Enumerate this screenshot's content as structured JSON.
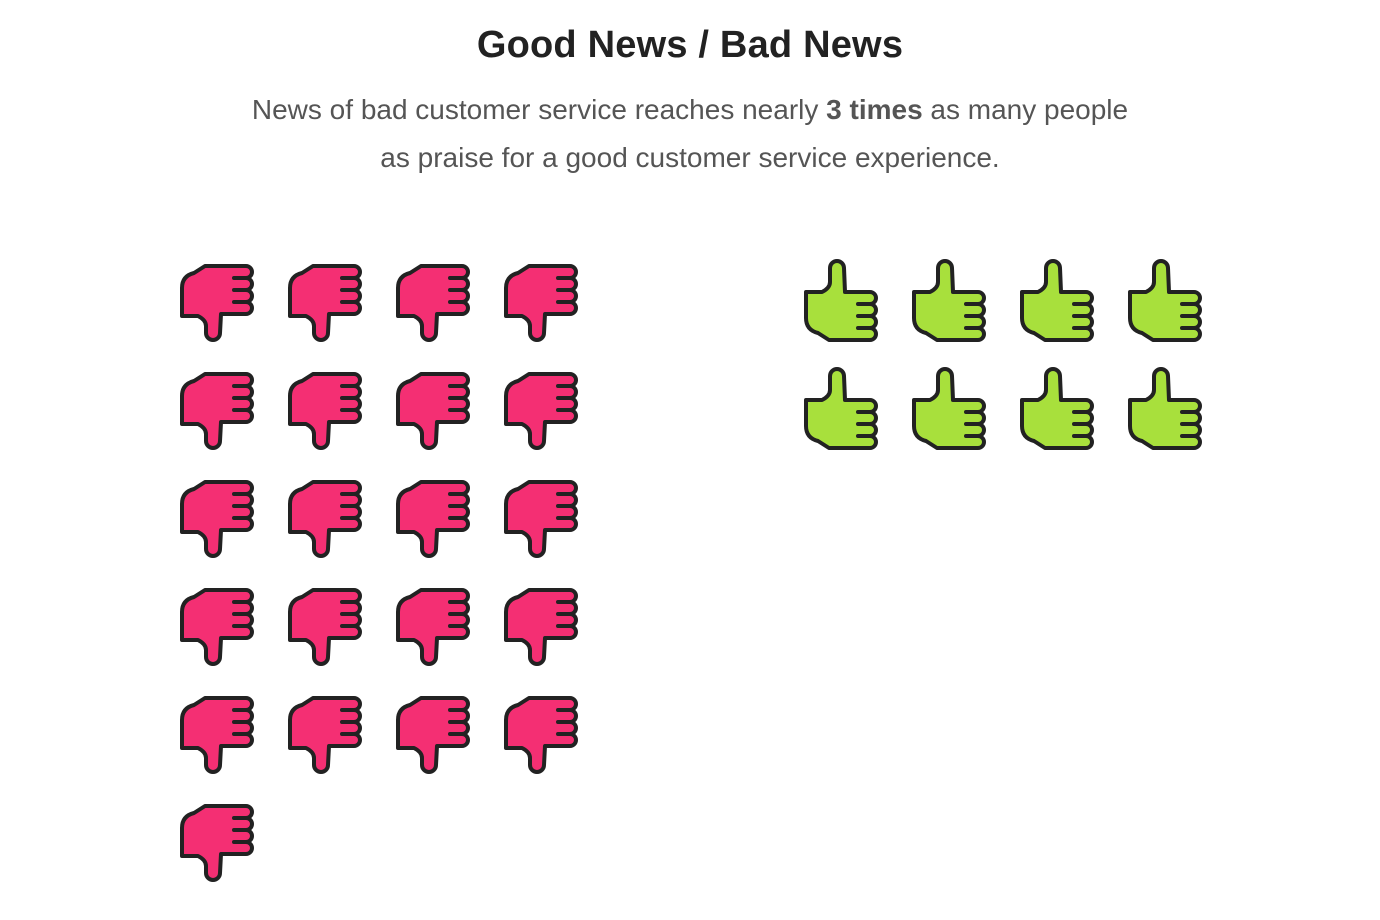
{
  "title": "Good News / Bad News",
  "subtitle": {
    "before": "News of bad customer service reaches nearly ",
    "emphasis": "3 times",
    "after_line1": " as many people",
    "line2": "as praise for a good customer service experience."
  },
  "colors": {
    "bad": "#f42f73",
    "good": "#a8e03c",
    "outline": "#222222",
    "title": "#222222",
    "subtitle": "#555555"
  },
  "chart_data": {
    "type": "pictogram",
    "title": "Good News / Bad News",
    "columns_per_group": 4,
    "series": [
      {
        "key": "bad",
        "icon": "thumbs-down-icon",
        "value": 21
      },
      {
        "key": "good",
        "icon": "thumbs-up-icon",
        "value": 8
      }
    ]
  }
}
